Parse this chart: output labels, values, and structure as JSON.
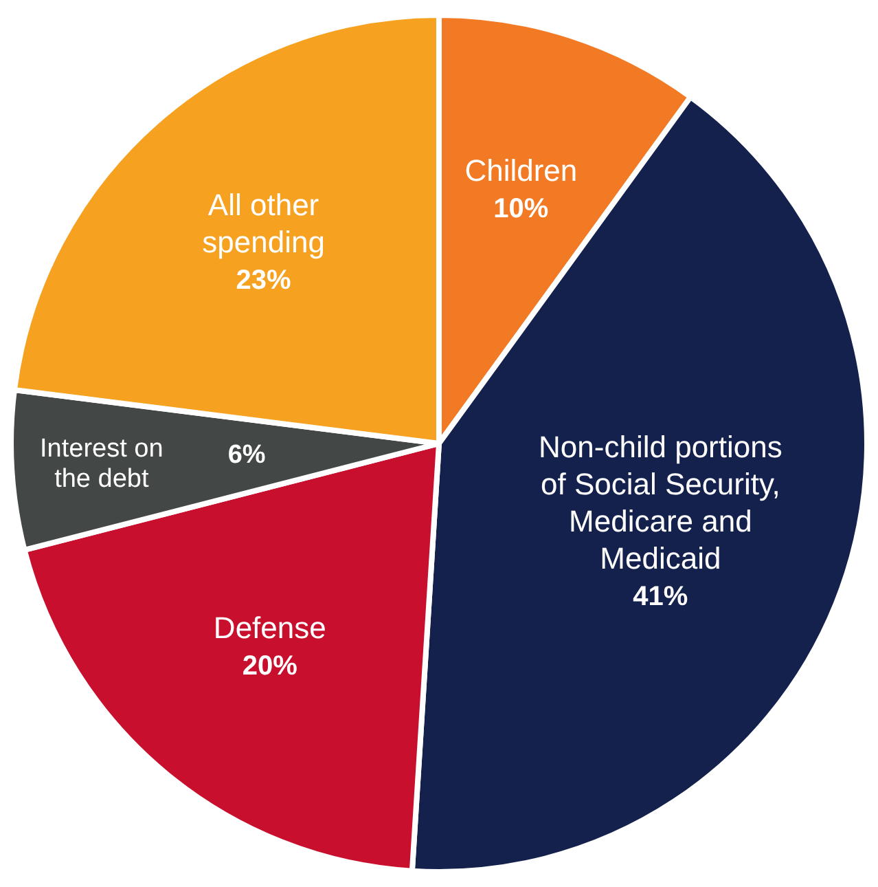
{
  "chart_data": {
    "type": "pie",
    "categories": [
      "Children",
      "Non-child portions of Social Security, Medicare and Medicaid",
      "Defense",
      "Interest on the debt",
      "All other spending"
    ],
    "values": [
      10,
      41,
      20,
      6,
      23
    ],
    "colors": [
      "#f37a24",
      "#14214d",
      "#c8102e",
      "#434745",
      "#f6a11f"
    ],
    "value_labels": [
      "10%",
      "41%",
      "20%",
      "6%",
      "23%"
    ],
    "legend": false
  }
}
